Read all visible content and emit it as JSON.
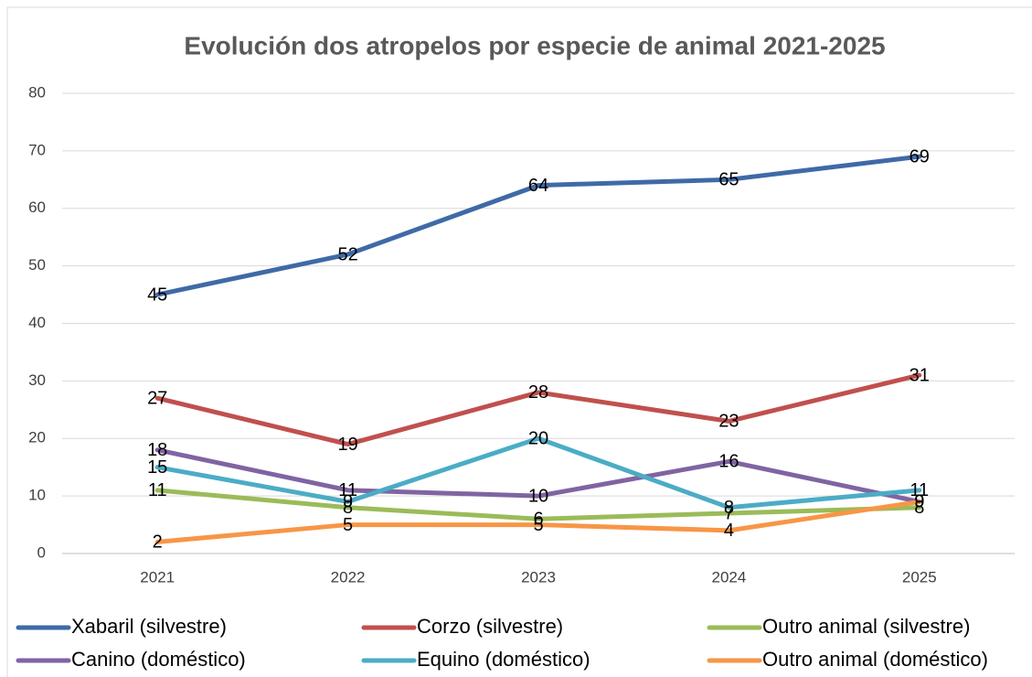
{
  "chart_data": {
    "type": "line",
    "title": "Evolución dos atropelos por especie de animal 2021-2025",
    "categories": [
      "2021",
      "2022",
      "2023",
      "2024",
      "2025"
    ],
    "series": [
      {
        "name": "Xabaril (silvestre)",
        "color": "#3f6aa6",
        "values": [
          45,
          52,
          64,
          65,
          69
        ]
      },
      {
        "name": "Corzo (silvestre)",
        "color": "#c0504d",
        "values": [
          27,
          19,
          28,
          23,
          31
        ]
      },
      {
        "name": "Outro animal (silvestre)",
        "color": "#9bbb59",
        "values": [
          11,
          8,
          6,
          7,
          8
        ]
      },
      {
        "name": "Canino (doméstico)",
        "color": "#8064a2",
        "values": [
          18,
          11,
          10,
          16,
          9
        ]
      },
      {
        "name": "Equino (doméstico)",
        "color": "#4bacc6",
        "values": [
          15,
          9,
          20,
          8,
          11
        ]
      },
      {
        "name": "Outro animal (doméstico)",
        "color": "#f79646",
        "values": [
          2,
          5,
          5,
          4,
          9
        ]
      }
    ],
    "ylim": [
      0,
      80
    ],
    "yticks": [
      0,
      10,
      20,
      30,
      40,
      50,
      60,
      70,
      80
    ],
    "grid": true,
    "legend": "bottom",
    "data_labels": true
  }
}
